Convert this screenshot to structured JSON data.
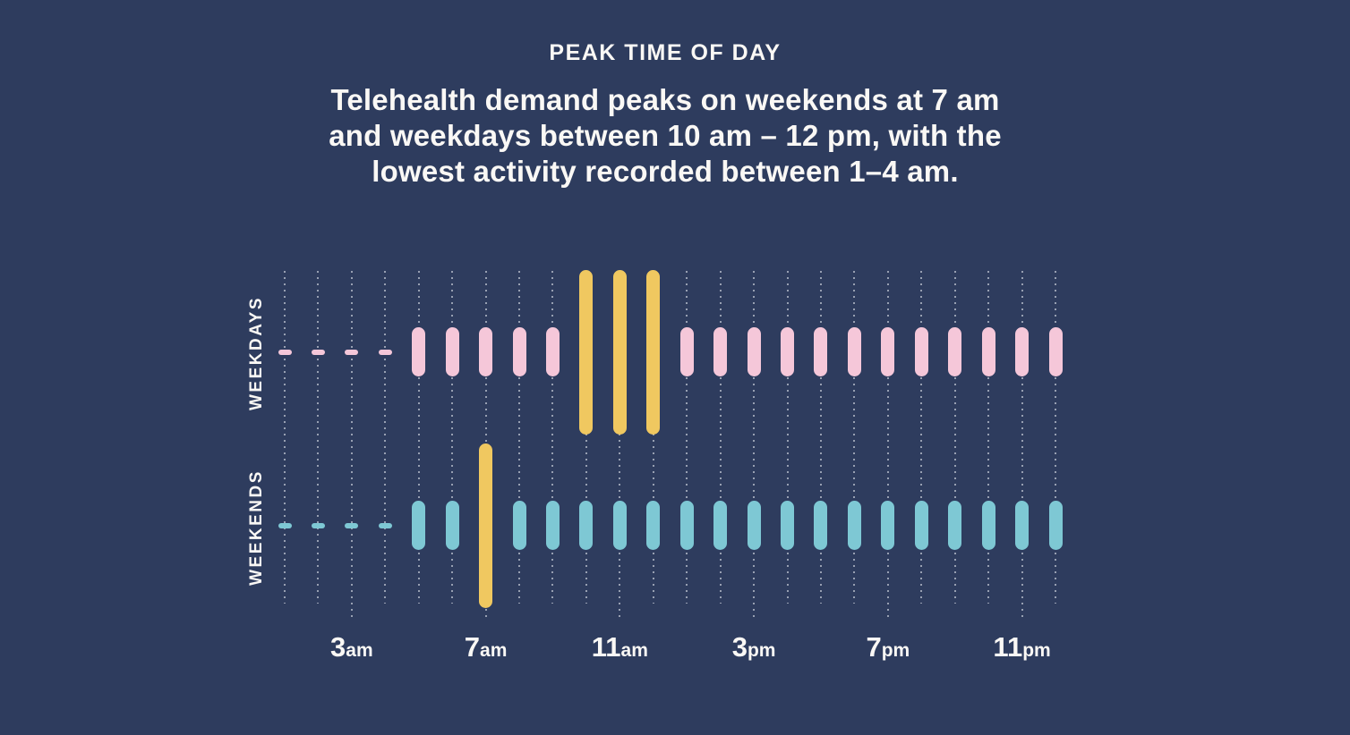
{
  "chart_data": {
    "type": "bar",
    "title": "PEAK TIME OF DAY",
    "subtitle": "Telehealth demand peaks on weekends at 7 am and weekdays between 10 am – 12 pm, with the lowest activity recorded between 1–4 am.",
    "subtitle_lines": [
      "Telehealth demand peaks on weekends at 7 am",
      "and weekdays between 10 am – 12 pm, with the",
      "lowest activity recorded between 1–4 am."
    ],
    "x": [
      "1am",
      "2am",
      "3am",
      "4am",
      "5am",
      "6am",
      "7am",
      "8am",
      "9am",
      "10am",
      "11am",
      "12pm",
      "1pm",
      "2pm",
      "3pm",
      "4pm",
      "5pm",
      "6pm",
      "7pm",
      "8pm",
      "9pm",
      "10pm",
      "11pm",
      "12am"
    ],
    "xticks": [
      {
        "label": "3am",
        "index": 2
      },
      {
        "label": "7am",
        "index": 6
      },
      {
        "label": "11am",
        "index": 10
      },
      {
        "label": "3pm",
        "index": 14
      },
      {
        "label": "7pm",
        "index": 18
      },
      {
        "label": "11pm",
        "index": 22
      }
    ],
    "series": [
      {
        "name": "WEEKDAYS",
        "color": "#f5c7d9",
        "levels": [
          "low",
          "low",
          "low",
          "low",
          "medium",
          "medium",
          "medium",
          "medium",
          "medium",
          "peak",
          "peak",
          "peak",
          "medium",
          "medium",
          "medium",
          "medium",
          "medium",
          "medium",
          "medium",
          "medium",
          "medium",
          "medium",
          "medium",
          "medium"
        ]
      },
      {
        "name": "WEEKENDS",
        "color": "#7ec8d4",
        "levels": [
          "low",
          "low",
          "low",
          "low",
          "medium",
          "medium",
          "peak",
          "medium",
          "medium",
          "medium",
          "medium",
          "medium",
          "medium",
          "medium",
          "medium",
          "medium",
          "medium",
          "medium",
          "medium",
          "medium",
          "medium",
          "medium",
          "medium",
          "medium"
        ]
      }
    ],
    "levels_legend": {
      "low": "lowest activity (small dash)",
      "medium": "normal activity (short bar)",
      "peak": "peak activity (tall highlighted bar)"
    },
    "colors": {
      "background": "#2e3c5e",
      "peak_highlight": "#f0c860",
      "gridline_dots": "#98a0b2",
      "text": "#faf8f5"
    },
    "grid": "dotted vertical line per hour",
    "legend_position": "none"
  }
}
